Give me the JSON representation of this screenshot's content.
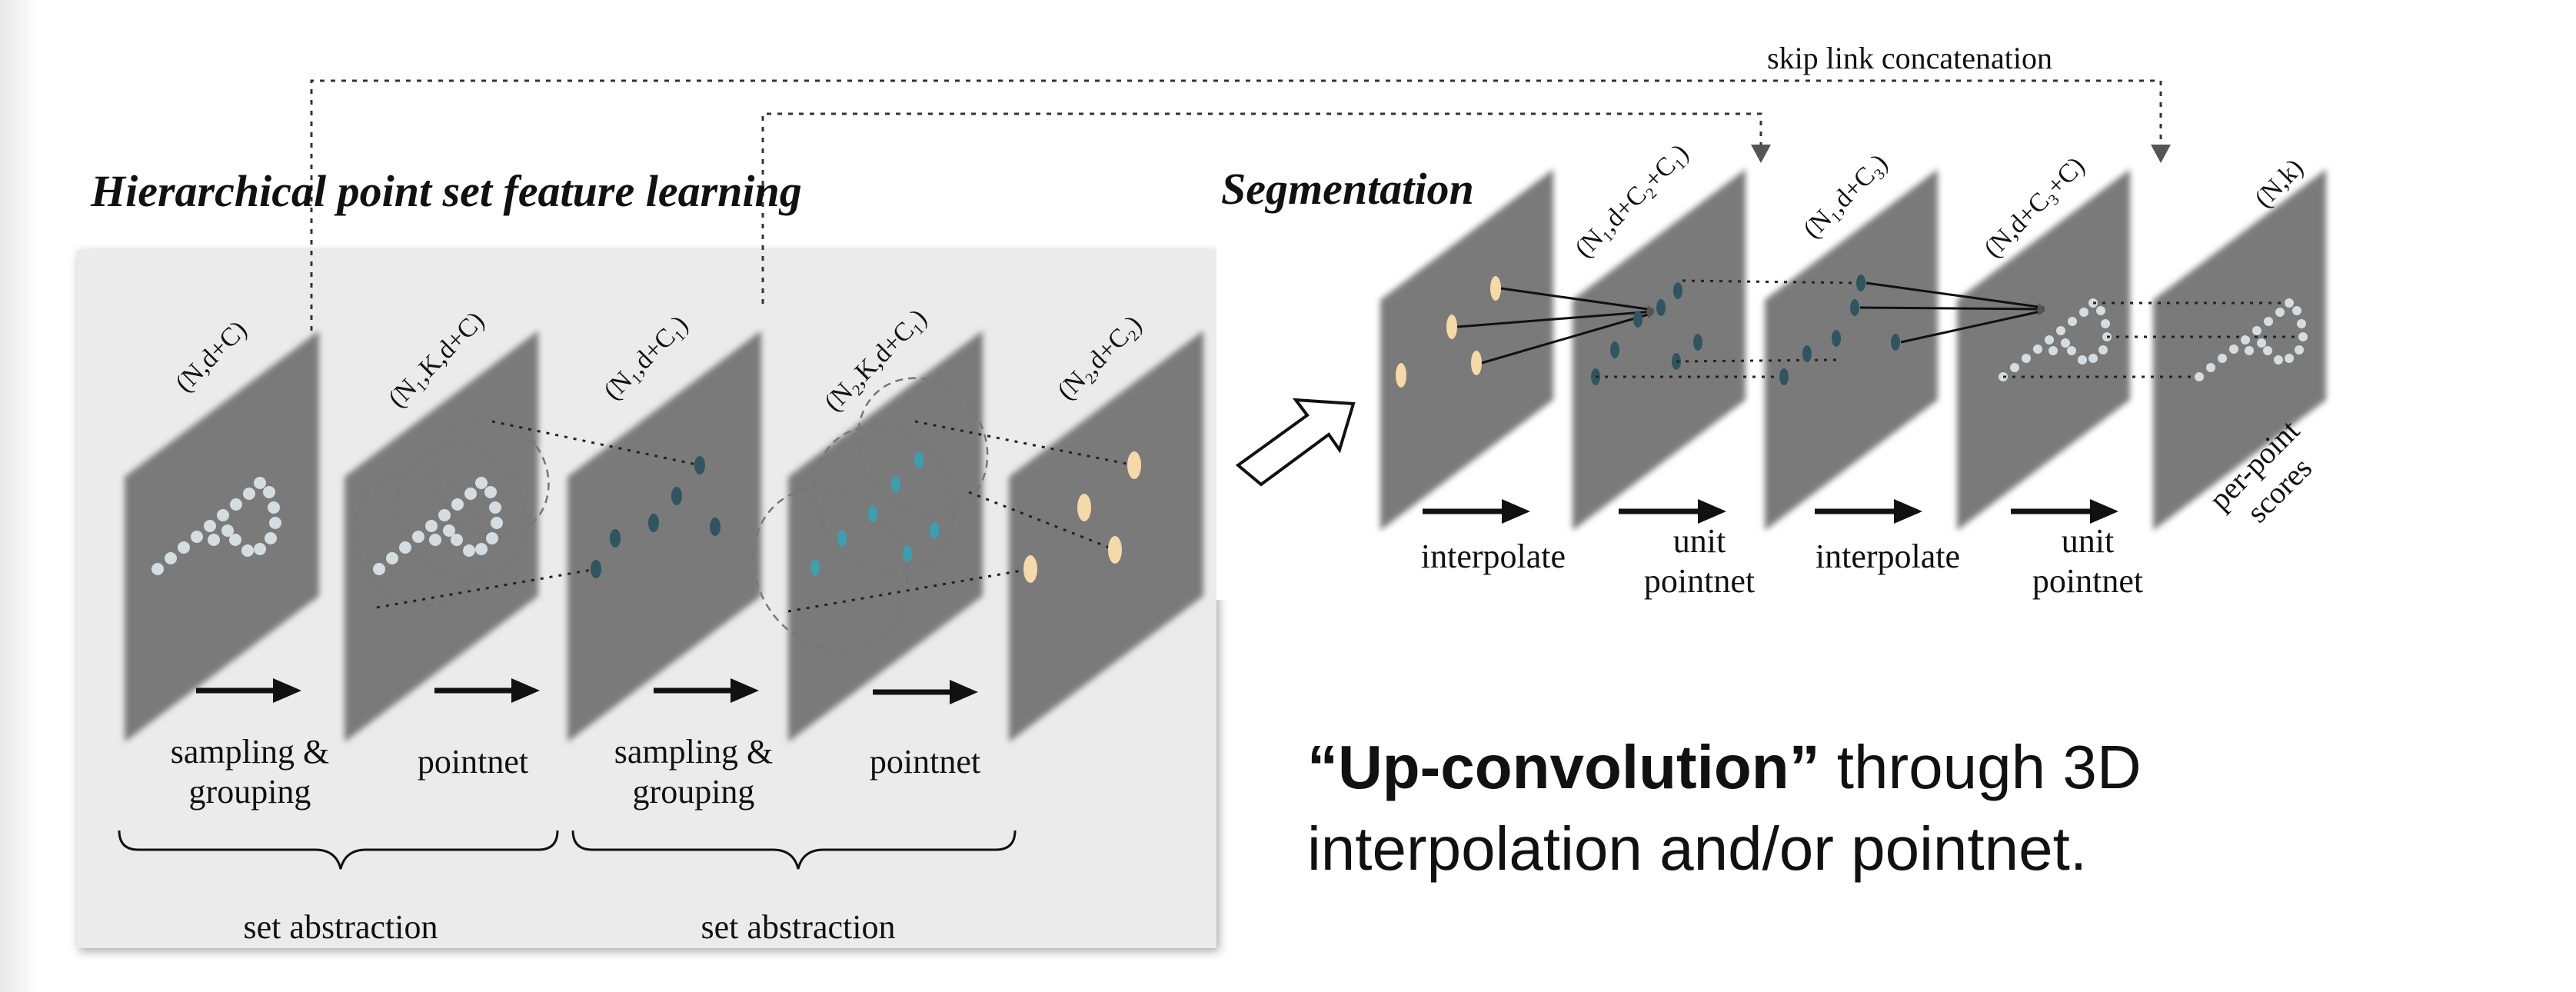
{
  "headings": {
    "hierarchical": "Hierarchical point set feature learning",
    "segmentation": "Segmentation"
  },
  "skip_link_label": "skip link concatenation",
  "dimension_labels": {
    "l1": "(N,d+C)",
    "l2": "(N₁,K,d+C)",
    "l3": "(N₁,d+C₁)",
    "l4": "(N₂,K,d+C₁)",
    "l5": "(N₂,d+C₂)",
    "r1": "(N₁,d+C₂+C₁)",
    "r2": "(N₁,d+C₃)",
    "r3": "(N,d+C₃+C)",
    "r4": "(N,k)"
  },
  "operations": {
    "sampling_grouping_1": [
      "sampling &",
      "grouping"
    ],
    "pointnet_1": "pointnet",
    "sampling_grouping_2": [
      "sampling &",
      "grouping"
    ],
    "pointnet_2": "pointnet",
    "set_abstraction_1": "set abstraction",
    "set_abstraction_2": "set abstraction",
    "interpolate_1": "interpolate",
    "unit_pointnet_1": [
      "unit",
      "pointnet"
    ],
    "interpolate_2": "interpolate",
    "unit_pointnet_2": [
      "unit",
      "pointnet"
    ],
    "per_point_scores": [
      "per-point",
      "scores"
    ]
  },
  "caption": {
    "bold": "“Up-convolution”",
    "rest": " through 3D interpolation and/or pointnet."
  },
  "colors": {
    "plane": "#7a7a7a",
    "point_light": "#d5dde0",
    "point_teal": "#2f5560",
    "point_cyan": "#3c9fb0",
    "point_peach": "#f5d9a8",
    "panel_bg": "#ebebeb"
  }
}
